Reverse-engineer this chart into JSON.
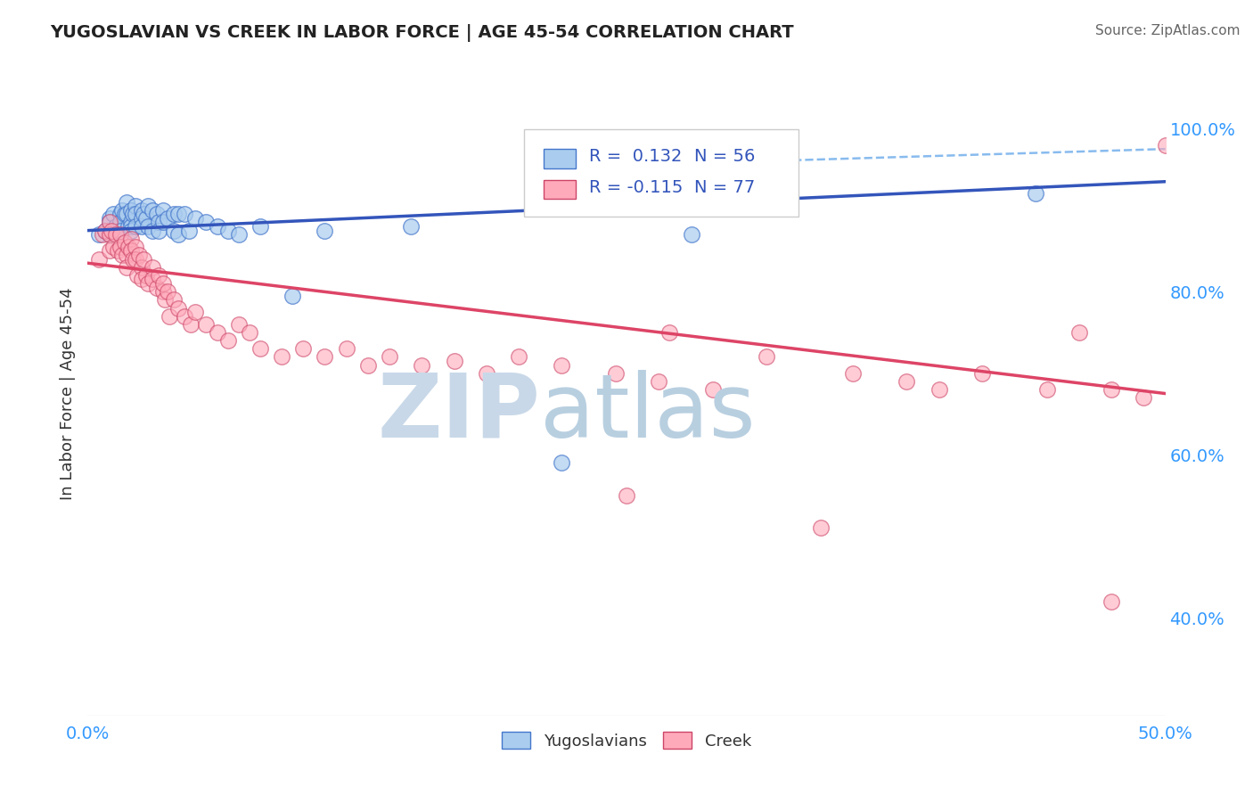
{
  "title": "YUGOSLAVIAN VS CREEK IN LABOR FORCE | AGE 45-54 CORRELATION CHART",
  "source": "Source: ZipAtlas.com",
  "ylabel": "In Labor Force | Age 45-54",
  "xlim": [
    0.0,
    0.5
  ],
  "ylim": [
    0.28,
    1.07
  ],
  "xticks": [
    0.0,
    0.1,
    0.2,
    0.3,
    0.4,
    0.5
  ],
  "xticklabels": [
    "0.0%",
    "",
    "",
    "",
    "",
    "50.0%"
  ],
  "yticks_right": [
    0.4,
    0.6,
    0.8,
    1.0
  ],
  "yticklabels_right": [
    "40.0%",
    "60.0%",
    "80.0%",
    "100.0%"
  ],
  "legend_R_blue": "0.132",
  "legend_N_blue": "56",
  "legend_R_pink": "-0.115",
  "legend_N_pink": "77",
  "blue_scatter_color": "#aaccee",
  "blue_edge_color": "#4477cc",
  "pink_scatter_color": "#ffaabb",
  "pink_edge_color": "#cc4466",
  "trend_blue_color": "#3355bb",
  "trend_pink_color": "#dd4466",
  "dashed_line_color": "#88bbee",
  "watermark_color": "#c8d8e8",
  "grid_color": "#dddddd",
  "blue_scatter_x": [
    0.005,
    0.008,
    0.01,
    0.01,
    0.01,
    0.012,
    0.013,
    0.015,
    0.015,
    0.015,
    0.016,
    0.017,
    0.018,
    0.018,
    0.019,
    0.02,
    0.02,
    0.02,
    0.02,
    0.021,
    0.022,
    0.022,
    0.022,
    0.025,
    0.025,
    0.025,
    0.026,
    0.027,
    0.028,
    0.028,
    0.03,
    0.03,
    0.032,
    0.033,
    0.033,
    0.035,
    0.035,
    0.037,
    0.04,
    0.04,
    0.042,
    0.042,
    0.045,
    0.047,
    0.05,
    0.055,
    0.06,
    0.065,
    0.07,
    0.08,
    0.095,
    0.11,
    0.15,
    0.22,
    0.28,
    0.44
  ],
  "blue_scatter_y": [
    0.87,
    0.875,
    0.89,
    0.885,
    0.87,
    0.895,
    0.88,
    0.895,
    0.885,
    0.875,
    0.9,
    0.895,
    0.91,
    0.895,
    0.88,
    0.9,
    0.885,
    0.88,
    0.875,
    0.895,
    0.905,
    0.895,
    0.88,
    0.9,
    0.89,
    0.88,
    0.895,
    0.89,
    0.905,
    0.88,
    0.9,
    0.875,
    0.895,
    0.885,
    0.875,
    0.9,
    0.885,
    0.89,
    0.895,
    0.875,
    0.895,
    0.87,
    0.895,
    0.875,
    0.89,
    0.885,
    0.88,
    0.875,
    0.87,
    0.88,
    0.795,
    0.875,
    0.88,
    0.59,
    0.87,
    0.92
  ],
  "pink_scatter_x": [
    0.005,
    0.007,
    0.008,
    0.01,
    0.01,
    0.01,
    0.011,
    0.012,
    0.013,
    0.014,
    0.015,
    0.015,
    0.016,
    0.017,
    0.018,
    0.018,
    0.019,
    0.02,
    0.02,
    0.021,
    0.022,
    0.022,
    0.023,
    0.024,
    0.025,
    0.025,
    0.026,
    0.027,
    0.028,
    0.03,
    0.03,
    0.032,
    0.033,
    0.035,
    0.035,
    0.036,
    0.037,
    0.038,
    0.04,
    0.042,
    0.045,
    0.048,
    0.05,
    0.055,
    0.06,
    0.065,
    0.07,
    0.075,
    0.08,
    0.09,
    0.1,
    0.11,
    0.12,
    0.13,
    0.14,
    0.155,
    0.17,
    0.185,
    0.2,
    0.22,
    0.245,
    0.265,
    0.27,
    0.29,
    0.315,
    0.355,
    0.38,
    0.395,
    0.415,
    0.445,
    0.46,
    0.475,
    0.49,
    0.5,
    0.25,
    0.34,
    0.475
  ],
  "pink_scatter_y": [
    0.84,
    0.87,
    0.875,
    0.885,
    0.87,
    0.85,
    0.875,
    0.855,
    0.87,
    0.85,
    0.87,
    0.855,
    0.845,
    0.86,
    0.845,
    0.83,
    0.855,
    0.865,
    0.85,
    0.84,
    0.855,
    0.84,
    0.82,
    0.845,
    0.83,
    0.815,
    0.84,
    0.82,
    0.81,
    0.83,
    0.815,
    0.805,
    0.82,
    0.8,
    0.81,
    0.79,
    0.8,
    0.77,
    0.79,
    0.78,
    0.77,
    0.76,
    0.775,
    0.76,
    0.75,
    0.74,
    0.76,
    0.75,
    0.73,
    0.72,
    0.73,
    0.72,
    0.73,
    0.71,
    0.72,
    0.71,
    0.715,
    0.7,
    0.72,
    0.71,
    0.7,
    0.69,
    0.75,
    0.68,
    0.72,
    0.7,
    0.69,
    0.68,
    0.7,
    0.68,
    0.75,
    0.68,
    0.67,
    0.98,
    0.55,
    0.51,
    0.42
  ]
}
